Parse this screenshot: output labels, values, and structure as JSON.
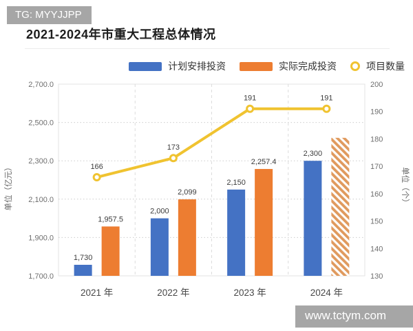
{
  "watermarks": {
    "top": "TG: MYYJJPP",
    "bottom": "www.tctym.com"
  },
  "title": "2021-2024年市重大工程总体情况",
  "legend": [
    {
      "label": "计划安排投资",
      "color": "#4472C4",
      "marker": "bar"
    },
    {
      "label": "实际完成投资",
      "color": "#ED7D31",
      "marker": "bar"
    },
    {
      "label": "项目数量",
      "color": "#F0C330",
      "marker": "ring"
    }
  ],
  "chart_data": {
    "type": "bar",
    "subtype": "grouped bars with line on secondary axis",
    "title": "2021-2024年市重大工程总体情况",
    "categories": [
      "2021 年",
      "2022 年",
      "2023 年",
      "2024 年"
    ],
    "series": [
      {
        "name": "计划安排投资",
        "type": "bar",
        "axis": "left",
        "color": "#4472C4",
        "values": [
          1730,
          2000,
          2150,
          2300
        ],
        "data_labels": [
          "1,730",
          "2,000",
          "2,150",
          "2,300"
        ]
      },
      {
        "name": "实际完成投资",
        "type": "bar",
        "axis": "left",
        "color": "#ED7D31",
        "values": [
          1957.5,
          2099,
          2257.4,
          2420
        ],
        "data_labels": [
          "1,957.5",
          "2,099",
          "2,257.4",
          ""
        ],
        "hatched": [
          false,
          false,
          false,
          true
        ],
        "note": "2024 bar drawn with diagonal hatching and no data label; ~2,420 estimated from gridlines"
      },
      {
        "name": "项目数量",
        "type": "line",
        "axis": "right",
        "color": "#F0C330",
        "marker": "open-circle",
        "values": [
          166,
          173,
          191,
          191
        ],
        "data_labels": [
          "166",
          "173",
          "191",
          "191"
        ]
      }
    ],
    "left_axis": {
      "title": "单位（亿元）",
      "min": 1700,
      "max": 2700,
      "step": 200,
      "tick_labels": [
        "2,700.0",
        "2,500.0",
        "2,300.0",
        "2,100.0",
        "1,900.0",
        "1,700.0"
      ]
    },
    "right_axis": {
      "title": "单位（个）",
      "min": 130,
      "max": 200,
      "step": 10,
      "tick_labels": [
        "200",
        "190",
        "180",
        "170",
        "160",
        "150",
        "140",
        "130"
      ]
    },
    "grid": {
      "horizontal": "dotted",
      "vertical": "dashed category separators"
    },
    "legend_position": "top"
  }
}
